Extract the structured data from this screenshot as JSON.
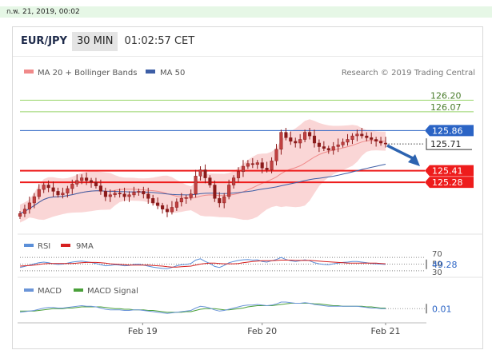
{
  "top_bar": {
    "datetime": "ก.พ. 21, 2019, 00:02"
  },
  "header": {
    "pair": "EUR/JPY",
    "timeframe": "30 MIN",
    "time": "01:02:57 CET"
  },
  "credit": "Research © 2019 Trading Central",
  "colors": {
    "accent_blue": "#2b64c5",
    "red_level": "#ee1c1c",
    "green_level": "#98d46a",
    "candle": "#8b1a1a",
    "band": "#f5b4b4",
    "ma50": "#3d5ea6",
    "rsi": "#5b8fd8",
    "rsi_ma": "#d62020",
    "macd": "#6b95d8",
    "macd_signal": "#4aa03a",
    "arrow": "#2c63b0"
  },
  "chart_data": [
    {
      "type": "candlestick",
      "legend": [
        "MA 20 + Bollinger Bands",
        "MA 50"
      ],
      "x_ticks": [
        "Feb 19",
        "Feb 20",
        "Feb 21"
      ],
      "ylim": [
        124.7,
        126.4
      ],
      "levels": [
        {
          "value": 126.2,
          "label": "126.20",
          "style": "green"
        },
        {
          "value": 126.07,
          "label": "126.07",
          "style": "green"
        },
        {
          "value": 125.86,
          "label": "125.86",
          "style": "blue"
        },
        {
          "value": 125.71,
          "label": "125.71",
          "style": "last"
        },
        {
          "value": 125.41,
          "label": "125.41",
          "style": "red"
        },
        {
          "value": 125.28,
          "label": "125.28",
          "style": "red"
        }
      ],
      "close": [
        124.93,
        124.98,
        125.05,
        125.12,
        125.2,
        125.25,
        125.22,
        125.18,
        125.14,
        125.16,
        125.21,
        125.26,
        125.3,
        125.33,
        125.3,
        125.28,
        125.24,
        125.18,
        125.12,
        125.14,
        125.16,
        125.15,
        125.12,
        125.14,
        125.17,
        125.18,
        125.15,
        125.1,
        125.05,
        125.02,
        124.98,
        124.95,
        125.0,
        125.06,
        125.1,
        125.11,
        125.15,
        125.35,
        125.42,
        125.33,
        125.25,
        125.1,
        125.05,
        125.12,
        125.25,
        125.33,
        125.4,
        125.46,
        125.49,
        125.48,
        125.5,
        125.44,
        125.42,
        125.52,
        125.65,
        125.84,
        125.78,
        125.74,
        125.72,
        125.76,
        125.84,
        125.8,
        125.72,
        125.68,
        125.66,
        125.64,
        125.68,
        125.7,
        125.73,
        125.76,
        125.8,
        125.82,
        125.8,
        125.78,
        125.76,
        125.74,
        125.72,
        125.71
      ]
    },
    {
      "type": "line",
      "legend": [
        "RSI",
        "9MA"
      ],
      "ticks": [
        70,
        50,
        30
      ],
      "last_value": 49.28,
      "ylim": [
        20,
        80
      ],
      "rsi": [
        40,
        43,
        47,
        51,
        54,
        56,
        54,
        51,
        49,
        50,
        53,
        56,
        58,
        59,
        57,
        55,
        52,
        48,
        45,
        46,
        48,
        47,
        45,
        46,
        49,
        50,
        47,
        44,
        41,
        39,
        37,
        36,
        40,
        45,
        48,
        49,
        52,
        62,
        66,
        58,
        52,
        43,
        40,
        46,
        54,
        58,
        61,
        63,
        64,
        62,
        63,
        58,
        56,
        60,
        64,
        70,
        64,
        60,
        58,
        60,
        63,
        60,
        54,
        51,
        49,
        48,
        51,
        53,
        55,
        56,
        58,
        58,
        56,
        54,
        52,
        51,
        50,
        49
      ],
      "rsi_ma": [
        44,
        45,
        46,
        47,
        49,
        51,
        52,
        52,
        52,
        52,
        52,
        52,
        53,
        54,
        55,
        55,
        55,
        54,
        53,
        51,
        50,
        49,
        48,
        47,
        47,
        47,
        47,
        47,
        46,
        45,
        44,
        42,
        41,
        41,
        42,
        43,
        44,
        47,
        50,
        52,
        53,
        53,
        52,
        51,
        51,
        51,
        52,
        54,
        56,
        58,
        59,
        60,
        60,
        60,
        61,
        62,
        62,
        62,
        61,
        61,
        61,
        61,
        60,
        59,
        58,
        57,
        56,
        55,
        54,
        53,
        53,
        53,
        53,
        53,
        53,
        53,
        52,
        51
      ]
    },
    {
      "type": "line",
      "legend": [
        "MACD",
        "MACD Signal"
      ],
      "last_value": 0.01,
      "ylim": [
        -0.2,
        0.2
      ],
      "macd": [
        -0.05,
        -0.04,
        -0.03,
        -0.02,
        0.0,
        0.02,
        0.03,
        0.03,
        0.02,
        0.02,
        0.03,
        0.04,
        0.05,
        0.06,
        0.05,
        0.05,
        0.04,
        0.02,
        0.0,
        -0.01,
        -0.01,
        -0.01,
        -0.02,
        -0.02,
        -0.01,
        -0.01,
        -0.02,
        -0.03,
        -0.04,
        -0.05,
        -0.06,
        -0.07,
        -0.06,
        -0.05,
        -0.04,
        -0.03,
        -0.02,
        0.02,
        0.05,
        0.04,
        0.02,
        -0.01,
        -0.03,
        -0.02,
        0.0,
        0.02,
        0.04,
        0.06,
        0.07,
        0.07,
        0.08,
        0.07,
        0.06,
        0.07,
        0.09,
        0.12,
        0.12,
        0.11,
        0.1,
        0.1,
        0.11,
        0.1,
        0.08,
        0.07,
        0.06,
        0.05,
        0.05,
        0.05,
        0.05,
        0.05,
        0.05,
        0.05,
        0.04,
        0.03,
        0.02,
        0.02,
        0.01,
        0.01
      ],
      "signal": [
        -0.03,
        -0.03,
        -0.03,
        -0.03,
        -0.02,
        -0.01,
        0.0,
        0.01,
        0.01,
        0.01,
        0.02,
        0.02,
        0.03,
        0.04,
        0.04,
        0.04,
        0.04,
        0.04,
        0.03,
        0.02,
        0.01,
        0.01,
        0.0,
        0.0,
        -0.01,
        -0.01,
        -0.01,
        -0.02,
        -0.02,
        -0.03,
        -0.04,
        -0.05,
        -0.05,
        -0.05,
        -0.05,
        -0.04,
        -0.04,
        -0.02,
        0.0,
        0.01,
        0.01,
        0.01,
        0.0,
        -0.01,
        -0.01,
        0.0,
        0.01,
        0.02,
        0.04,
        0.05,
        0.06,
        0.06,
        0.06,
        0.06,
        0.07,
        0.08,
        0.09,
        0.1,
        0.1,
        0.1,
        0.1,
        0.1,
        0.09,
        0.09,
        0.08,
        0.07,
        0.06,
        0.06,
        0.05,
        0.05,
        0.05,
        0.05,
        0.05,
        0.04,
        0.04,
        0.03,
        0.02,
        0.02
      ]
    }
  ]
}
